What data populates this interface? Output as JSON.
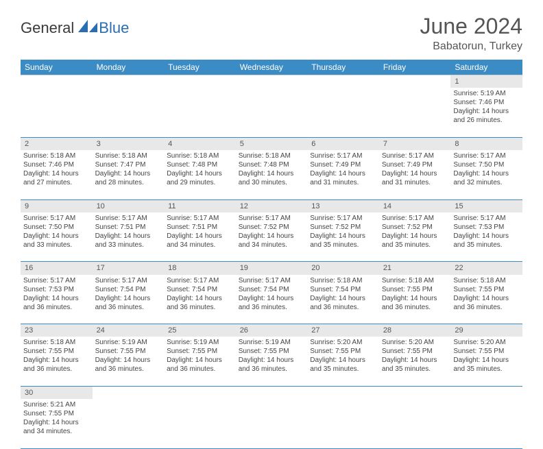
{
  "logo": {
    "text1": "General",
    "text2": "Blue",
    "accent_color": "#2a6db0"
  },
  "title": "June 2024",
  "location": "Babatorun, Turkey",
  "colors": {
    "header_bg": "#3b8bc4",
    "header_text": "#ffffff",
    "daynum_bg": "#e8e8e8",
    "border": "#3b8bc4",
    "body_text": "#444"
  },
  "weekdays": [
    "Sunday",
    "Monday",
    "Tuesday",
    "Wednesday",
    "Thursday",
    "Friday",
    "Saturday"
  ],
  "first_weekday_index": 6,
  "days": [
    {
      "n": 1,
      "sunrise": "5:19 AM",
      "sunset": "7:46 PM",
      "daylight": "14 hours and 26 minutes."
    },
    {
      "n": 2,
      "sunrise": "5:18 AM",
      "sunset": "7:46 PM",
      "daylight": "14 hours and 27 minutes."
    },
    {
      "n": 3,
      "sunrise": "5:18 AM",
      "sunset": "7:47 PM",
      "daylight": "14 hours and 28 minutes."
    },
    {
      "n": 4,
      "sunrise": "5:18 AM",
      "sunset": "7:48 PM",
      "daylight": "14 hours and 29 minutes."
    },
    {
      "n": 5,
      "sunrise": "5:18 AM",
      "sunset": "7:48 PM",
      "daylight": "14 hours and 30 minutes."
    },
    {
      "n": 6,
      "sunrise": "5:17 AM",
      "sunset": "7:49 PM",
      "daylight": "14 hours and 31 minutes."
    },
    {
      "n": 7,
      "sunrise": "5:17 AM",
      "sunset": "7:49 PM",
      "daylight": "14 hours and 31 minutes."
    },
    {
      "n": 8,
      "sunrise": "5:17 AM",
      "sunset": "7:50 PM",
      "daylight": "14 hours and 32 minutes."
    },
    {
      "n": 9,
      "sunrise": "5:17 AM",
      "sunset": "7:50 PM",
      "daylight": "14 hours and 33 minutes."
    },
    {
      "n": 10,
      "sunrise": "5:17 AM",
      "sunset": "7:51 PM",
      "daylight": "14 hours and 33 minutes."
    },
    {
      "n": 11,
      "sunrise": "5:17 AM",
      "sunset": "7:51 PM",
      "daylight": "14 hours and 34 minutes."
    },
    {
      "n": 12,
      "sunrise": "5:17 AM",
      "sunset": "7:52 PM",
      "daylight": "14 hours and 34 minutes."
    },
    {
      "n": 13,
      "sunrise": "5:17 AM",
      "sunset": "7:52 PM",
      "daylight": "14 hours and 35 minutes."
    },
    {
      "n": 14,
      "sunrise": "5:17 AM",
      "sunset": "7:52 PM",
      "daylight": "14 hours and 35 minutes."
    },
    {
      "n": 15,
      "sunrise": "5:17 AM",
      "sunset": "7:53 PM",
      "daylight": "14 hours and 35 minutes."
    },
    {
      "n": 16,
      "sunrise": "5:17 AM",
      "sunset": "7:53 PM",
      "daylight": "14 hours and 36 minutes."
    },
    {
      "n": 17,
      "sunrise": "5:17 AM",
      "sunset": "7:54 PM",
      "daylight": "14 hours and 36 minutes."
    },
    {
      "n": 18,
      "sunrise": "5:17 AM",
      "sunset": "7:54 PM",
      "daylight": "14 hours and 36 minutes."
    },
    {
      "n": 19,
      "sunrise": "5:17 AM",
      "sunset": "7:54 PM",
      "daylight": "14 hours and 36 minutes."
    },
    {
      "n": 20,
      "sunrise": "5:18 AM",
      "sunset": "7:54 PM",
      "daylight": "14 hours and 36 minutes."
    },
    {
      "n": 21,
      "sunrise": "5:18 AM",
      "sunset": "7:55 PM",
      "daylight": "14 hours and 36 minutes."
    },
    {
      "n": 22,
      "sunrise": "5:18 AM",
      "sunset": "7:55 PM",
      "daylight": "14 hours and 36 minutes."
    },
    {
      "n": 23,
      "sunrise": "5:18 AM",
      "sunset": "7:55 PM",
      "daylight": "14 hours and 36 minutes."
    },
    {
      "n": 24,
      "sunrise": "5:19 AM",
      "sunset": "7:55 PM",
      "daylight": "14 hours and 36 minutes."
    },
    {
      "n": 25,
      "sunrise": "5:19 AM",
      "sunset": "7:55 PM",
      "daylight": "14 hours and 36 minutes."
    },
    {
      "n": 26,
      "sunrise": "5:19 AM",
      "sunset": "7:55 PM",
      "daylight": "14 hours and 36 minutes."
    },
    {
      "n": 27,
      "sunrise": "5:20 AM",
      "sunset": "7:55 PM",
      "daylight": "14 hours and 35 minutes."
    },
    {
      "n": 28,
      "sunrise": "5:20 AM",
      "sunset": "7:55 PM",
      "daylight": "14 hours and 35 minutes."
    },
    {
      "n": 29,
      "sunrise": "5:20 AM",
      "sunset": "7:55 PM",
      "daylight": "14 hours and 35 minutes."
    },
    {
      "n": 30,
      "sunrise": "5:21 AM",
      "sunset": "7:55 PM",
      "daylight": "14 hours and 34 minutes."
    }
  ],
  "labels": {
    "sunrise": "Sunrise:",
    "sunset": "Sunset:",
    "daylight": "Daylight:"
  }
}
